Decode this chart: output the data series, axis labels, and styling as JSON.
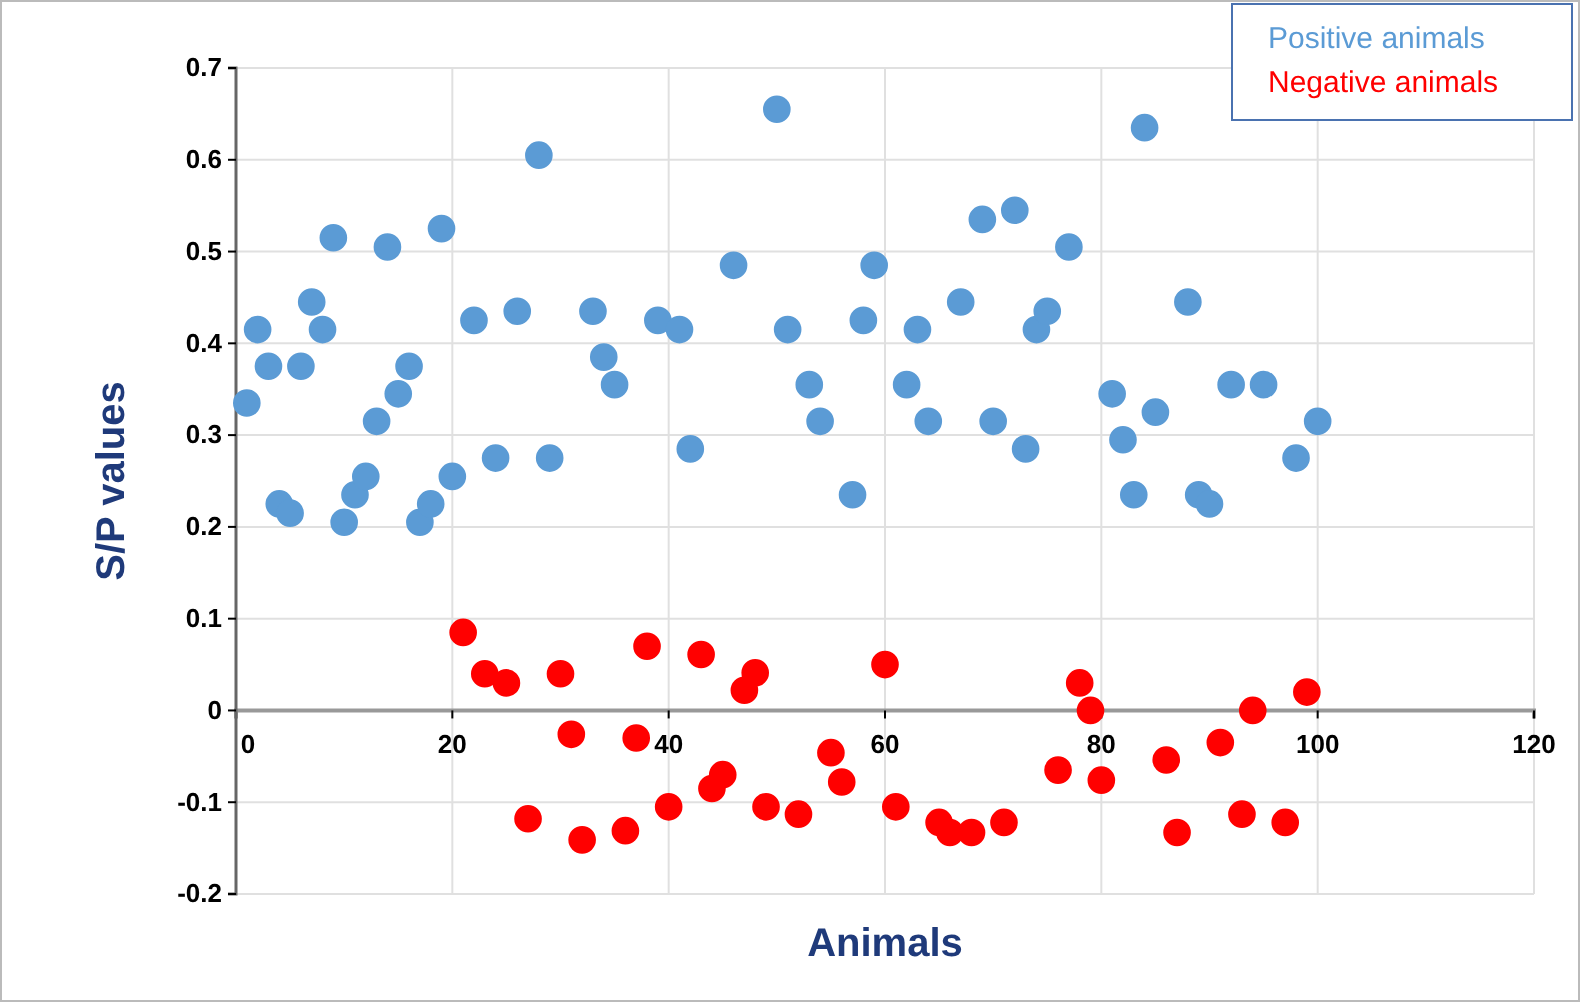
{
  "chart_data": {
    "type": "scatter",
    "xlabel": "Animals",
    "ylabel": "S/P values",
    "xlim": [
      0,
      120
    ],
    "ylim": [
      -0.2,
      0.7
    ],
    "xticks": [
      0,
      20,
      40,
      60,
      80,
      100,
      120
    ],
    "yticks": [
      -0.2,
      -0.1,
      0,
      0.1,
      0.2,
      0.3,
      0.4,
      0.5,
      0.6,
      0.7
    ],
    "grid": true,
    "legend": "top right",
    "marker": "circle",
    "series": [
      {
        "name": "Positive animals",
        "color": "#5b9bd5",
        "x": [
          1,
          2,
          3,
          4,
          5,
          6,
          7,
          8,
          9,
          10,
          11,
          12,
          13,
          14,
          15,
          16,
          17,
          18,
          19,
          20,
          22,
          24,
          26,
          28,
          29,
          33,
          34,
          35,
          39,
          41,
          42,
          46,
          50,
          51,
          53,
          54,
          57,
          58,
          59,
          62,
          63,
          64,
          67,
          69,
          70,
          72,
          73,
          74,
          75,
          77,
          81,
          82,
          83,
          84,
          85,
          88,
          89,
          90,
          92,
          95,
          98,
          100
        ],
        "values": [
          0.335,
          0.415,
          0.375,
          0.225,
          0.215,
          0.375,
          0.445,
          0.415,
          0.515,
          0.205,
          0.235,
          0.255,
          0.315,
          0.505,
          0.345,
          0.375,
          0.205,
          0.225,
          0.525,
          0.255,
          0.425,
          0.275,
          0.435,
          0.605,
          0.275,
          0.435,
          0.385,
          0.355,
          0.425,
          0.415,
          0.285,
          0.485,
          0.655,
          0.415,
          0.355,
          0.315,
          0.235,
          0.425,
          0.485,
          0.355,
          0.415,
          0.315,
          0.445,
          0.535,
          0.315,
          0.545,
          0.285,
          0.415,
          0.435,
          0.505,
          0.345,
          0.295,
          0.235,
          0.635,
          0.325,
          0.445,
          0.235,
          0.225,
          0.355,
          0.355,
          0.275,
          0.315
        ]
      },
      {
        "name": "Negative animals",
        "color": "#ff0000",
        "x": [
          21,
          23,
          25,
          27,
          30,
          31,
          32,
          36,
          37,
          38,
          40,
          43,
          44,
          45,
          47,
          48,
          49,
          52,
          55,
          56,
          60,
          61,
          65,
          66,
          68,
          71,
          76,
          78,
          79,
          80,
          86,
          87,
          91,
          93,
          94,
          97,
          99
        ],
        "values": [
          0.085,
          0.04,
          0.03,
          -0.118,
          0.04,
          -0.026,
          -0.141,
          -0.131,
          -0.03,
          0.07,
          -0.105,
          0.061,
          -0.085,
          -0.07,
          0.022,
          0.041,
          -0.105,
          -0.113,
          -0.046,
          -0.078,
          0.05,
          -0.105,
          -0.122,
          -0.133,
          -0.133,
          -0.122,
          -0.065,
          0.03,
          0,
          -0.076,
          -0.054,
          -0.133,
          -0.035,
          -0.113,
          0,
          -0.122,
          0.02
        ]
      }
    ]
  }
}
